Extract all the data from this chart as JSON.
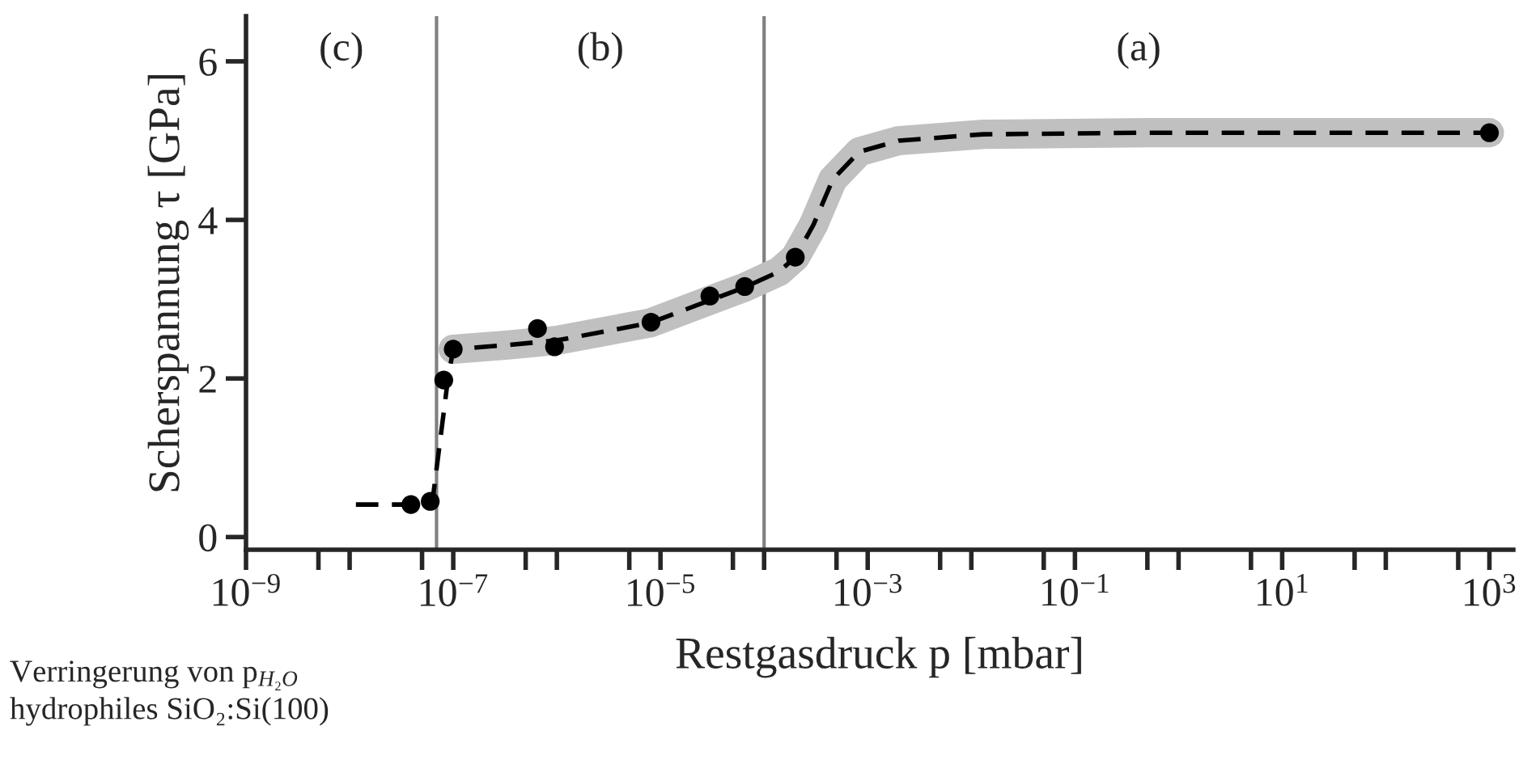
{
  "chart_data": {
    "type": "scatter",
    "xlabel": "Restgasdruck p [mbar]",
    "ylabel": "Scherspannung τ [GPa]",
    "log": "x",
    "xlim": [
      1e-09,
      1700.0
    ],
    "ylim": [
      -0.16,
      6.57
    ],
    "xticks": [
      {
        "value": 1e-09,
        "label": "10$^{−9}$"
      },
      {
        "value": 5e-09,
        "label": null
      },
      {
        "value": 1e-08,
        "label": null
      },
      {
        "value": 5e-08,
        "label": null
      },
      {
        "value": 1e-07,
        "label": "10$^{−7}$"
      },
      {
        "value": 5e-07,
        "label": null
      },
      {
        "value": 1e-06,
        "label": null
      },
      {
        "value": 5e-06,
        "label": null
      },
      {
        "value": 1e-05,
        "label": "10$^{−5}$"
      },
      {
        "value": 5e-05,
        "label": null
      },
      {
        "value": 0.0001,
        "label": null
      },
      {
        "value": 0.0005,
        "label": null
      },
      {
        "value": 0.001,
        "label": "10$^{−3}$"
      },
      {
        "value": 0.005,
        "label": null
      },
      {
        "value": 0.01,
        "label": null
      },
      {
        "value": 0.05,
        "label": null
      },
      {
        "value": 0.1,
        "label": "10$^{−1}$"
      },
      {
        "value": 0.5,
        "label": null
      },
      {
        "value": 1,
        "label": null
      },
      {
        "value": 5,
        "label": null
      },
      {
        "value": 10,
        "label": "10$^{1}$"
      },
      {
        "value": 50,
        "label": null
      },
      {
        "value": 100,
        "label": null
      },
      {
        "value": 500,
        "label": null
      },
      {
        "value": 1000,
        "label": "10$^{3}$"
      }
    ],
    "yticks": [
      0,
      2,
      4,
      6
    ],
    "grid": false,
    "legend": false,
    "series": [
      {
        "type": "line",
        "color": "#c0c0c0",
        "x": [
          1e-07,
          3.2e-07,
          1e-06,
          7.9e-06,
          3.2e-05,
          6.5e-05,
          0.00014,
          0.0002,
          0.0003,
          0.00046,
          0.00083,
          0.002,
          0.013,
          0.52,
          1000
        ],
        "values": [
          2.37,
          2.42,
          2.48,
          2.7,
          3.0,
          3.15,
          3.35,
          3.53,
          3.94,
          4.51,
          4.86,
          5.0,
          5.08,
          5.1,
          5.1
        ]
      },
      {
        "type": "line",
        "color": "#000000",
        "line_style": "dashed",
        "x": [
          1.15e-08,
          3.5e-08,
          6.3e-08,
          8.9e-08,
          1e-07,
          3.2e-07,
          1e-06,
          7.9e-06,
          3.2e-05,
          6.5e-05,
          0.00014,
          0.0002,
          0.0003,
          0.00046,
          0.00083,
          0.002,
          0.013,
          0.52,
          1000
        ],
        "values": [
          0.41,
          0.41,
          0.45,
          2.0,
          2.37,
          2.42,
          2.48,
          2.7,
          3.0,
          3.15,
          3.35,
          3.53,
          3.94,
          4.51,
          4.86,
          5.0,
          5.08,
          5.1,
          5.1
        ]
      },
      {
        "color": "#000000",
        "marker": "circle",
        "x": [
          3.9e-08,
          6e-08,
          8.1e-08,
          1e-07,
          6.5e-07,
          9.5e-07,
          8.1e-06,
          3e-05,
          6.5e-05,
          0.0002,
          1000
        ],
        "values": [
          0.41,
          0.45,
          1.98,
          2.37,
          2.63,
          2.4,
          2.71,
          3.04,
          3.16,
          3.53,
          5.1
        ]
      }
    ],
    "ref_lines": [
      {
        "axis": "x",
        "value": 6.9e-08,
        "color": "#808080"
      },
      {
        "axis": "x",
        "value": 0.0001,
        "color": "#808080"
      }
    ],
    "annotations": [
      "(c)",
      "(b)",
      "(a)",
      "Verringerung von p$_{H₂O}$",
      "hydrophiles SiO₂:Si(100)"
    ]
  }
}
